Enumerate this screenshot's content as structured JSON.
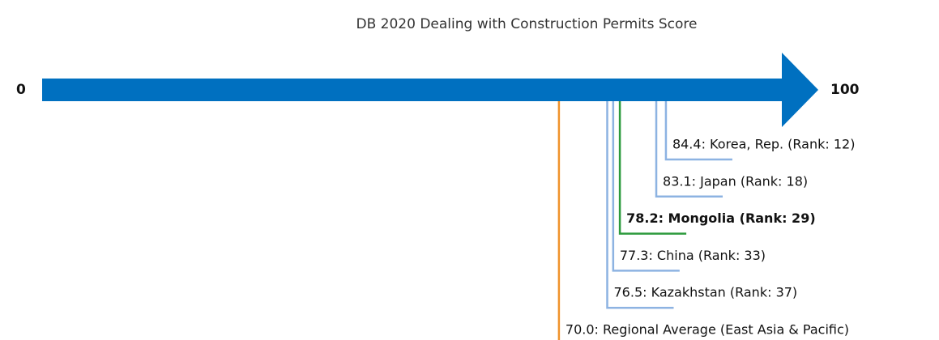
{
  "chart_data": {
    "type": "scale",
    "title": "DB 2020 Dealing with Construction Permits Score",
    "xlim": [
      0,
      100
    ],
    "xticks": [
      0,
      100
    ],
    "axis_color": "#0070c0",
    "values": [
      84.4,
      83.1,
      78.2,
      77.3,
      76.5,
      70.0
    ],
    "value_labels": [
      "84.4: Korea, Rep. (Rank: 12)",
      "83.1: Japan (Rank: 18)",
      "78.2: Mongolia (Rank: 29)",
      "77.3: China (Rank: 33)",
      "76.5: Kazakhstan (Rank: 37)",
      "70.0: Regional Average (East Asia & Pacific)"
    ],
    "colors": [
      "#8db3e2",
      "#8db3e2",
      "#2e9b3e",
      "#8db3e2",
      "#8db3e2",
      "#f0932b"
    ]
  }
}
